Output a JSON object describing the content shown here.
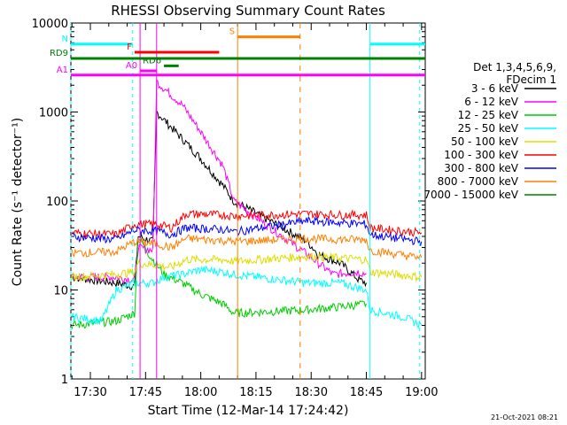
{
  "chart_data": {
    "type": "line",
    "title": "RHESSI Observing Summary Count Rates",
    "xlabel": "Start Time (12-Mar-14 17:24:42)",
    "ylabel": "Count Rate (s⁻¹ detector⁻¹)",
    "y_scale": "log",
    "ylim": [
      1,
      10000
    ],
    "xlim": [
      "17:24:42",
      "19:01:00"
    ],
    "x_ticks": [
      "17:30",
      "17:45",
      "18:00",
      "18:15",
      "18:30",
      "18:45",
      "19:00"
    ],
    "y_ticks": [
      "1",
      "10",
      "100",
      "1000",
      "10000"
    ],
    "legend": {
      "placement": "right",
      "header": [
        "Det 1,3,4,5,6,9,",
        "FDecim 1"
      ]
    },
    "series": [
      {
        "name": "3 - 6 keV",
        "color": "#000000",
        "points": [
          [
            "17:25",
            14
          ],
          [
            "17:37",
            12
          ],
          [
            "17:42",
            11
          ],
          [
            "17:43",
            40
          ],
          [
            "17:47",
            35
          ],
          [
            "17:48",
            1000
          ],
          [
            "17:55",
            500
          ],
          [
            "18:00",
            300
          ],
          [
            "18:06",
            150
          ],
          [
            "18:09",
            100
          ],
          [
            "18:29",
            35
          ],
          [
            "18:32",
            25
          ],
          [
            "18:38",
            20
          ],
          [
            "18:43",
            13
          ],
          [
            "18:45",
            12
          ]
        ]
      },
      {
        "name": "6 - 12 keV",
        "color": "#ff00ff",
        "points": [
          [
            "17:25",
            14
          ],
          [
            "17:37",
            14
          ],
          [
            "17:42",
            13
          ],
          [
            "17:43",
            30
          ],
          [
            "17:47",
            28
          ],
          [
            "17:48",
            2200
          ],
          [
            "17:55",
            1200
          ],
          [
            "18:00",
            600
          ],
          [
            "18:06",
            250
          ],
          [
            "18:09",
            100
          ],
          [
            "18:29",
            25
          ],
          [
            "18:32",
            20
          ],
          [
            "18:36",
            15
          ],
          [
            "18:43",
            16
          ],
          [
            "18:45",
            15
          ]
        ]
      },
      {
        "name": "12 - 25 keV",
        "color": "#00cc00",
        "points": [
          [
            "17:25",
            4
          ],
          [
            "17:37",
            4.5
          ],
          [
            "17:42",
            5.5
          ],
          [
            "17:43",
            40
          ],
          [
            "17:46",
            25
          ],
          [
            "17:50",
            15
          ],
          [
            "17:55",
            12
          ],
          [
            "18:00",
            9
          ],
          [
            "18:06",
            7
          ],
          [
            "18:09",
            5.5
          ],
          [
            "18:29",
            6
          ],
          [
            "18:38",
            6.5
          ],
          [
            "18:45",
            7
          ]
        ]
      },
      {
        "name": "25 - 50 keV",
        "color": "#00ffff",
        "points": [
          [
            "17:25",
            5
          ],
          [
            "17:33",
            4.5
          ],
          [
            "17:37",
            10
          ],
          [
            "17:42",
            12
          ],
          [
            "17:47",
            12
          ],
          [
            "17:50",
            14
          ],
          [
            "17:55",
            15
          ],
          [
            "18:00",
            17
          ],
          [
            "18:06",
            16
          ],
          [
            "18:09",
            15
          ],
          [
            "18:29",
            12
          ],
          [
            "18:38",
            12
          ],
          [
            "18:45",
            10
          ],
          [
            "18:46",
            6
          ],
          [
            "18:55",
            5
          ],
          [
            "19:00",
            4
          ]
        ]
      },
      {
        "name": "50 - 100 keV",
        "color": "#dddd00",
        "points": [
          [
            "17:25",
            14
          ],
          [
            "17:37",
            15
          ],
          [
            "17:42",
            16
          ],
          [
            "17:43",
            20
          ],
          [
            "17:48",
            19
          ],
          [
            "17:52",
            18
          ],
          [
            "17:56",
            22
          ],
          [
            "18:06",
            22
          ],
          [
            "18:09",
            21
          ],
          [
            "18:29",
            24
          ],
          [
            "18:38",
            23
          ],
          [
            "18:45",
            22
          ],
          [
            "18:46",
            16
          ],
          [
            "19:00",
            14
          ]
        ]
      },
      {
        "name": "100 - 300 keV",
        "color": "#ff0000",
        "points": [
          [
            "17:25",
            44
          ],
          [
            "17:37",
            42
          ],
          [
            "17:42",
            55
          ],
          [
            "17:48",
            55
          ],
          [
            "17:52",
            50
          ],
          [
            "17:56",
            72
          ],
          [
            "18:06",
            70
          ],
          [
            "18:09",
            68
          ],
          [
            "18:29",
            72
          ],
          [
            "18:38",
            70
          ],
          [
            "18:45",
            70
          ],
          [
            "18:46",
            50
          ],
          [
            "19:00",
            44
          ]
        ]
      },
      {
        "name": "300 - 800 keV",
        "color": "#0000ff",
        "points": [
          [
            "17:25",
            40
          ],
          [
            "17:37",
            37
          ],
          [
            "17:42",
            47
          ],
          [
            "17:48",
            46
          ],
          [
            "17:52",
            42
          ],
          [
            "17:56",
            50
          ],
          [
            "18:06",
            48
          ],
          [
            "18:09",
            45
          ],
          [
            "18:29",
            60
          ],
          [
            "18:38",
            57
          ],
          [
            "18:45",
            55
          ],
          [
            "18:46",
            42
          ],
          [
            "19:00",
            35
          ]
        ]
      },
      {
        "name": "800 - 7000 keV",
        "color": "#ff8000",
        "points": [
          [
            "17:25",
            26
          ],
          [
            "17:37",
            27
          ],
          [
            "17:42",
            35
          ],
          [
            "17:48",
            33
          ],
          [
            "17:52",
            30
          ],
          [
            "17:56",
            38
          ],
          [
            "18:06",
            36
          ],
          [
            "18:09",
            35
          ],
          [
            "18:29",
            38
          ],
          [
            "18:38",
            37
          ],
          [
            "18:45",
            37
          ],
          [
            "18:46",
            28
          ],
          [
            "19:00",
            23
          ]
        ]
      },
      {
        "name": "7000 - 15000 keV",
        "color": "#008000",
        "points": []
      }
    ],
    "flags": [
      {
        "label": "N",
        "color": "#00ffff",
        "segments": [
          [
            "17:24:42",
            "17:41:30"
          ],
          [
            "18:46:00",
            "19:01:00"
          ]
        ],
        "level": 5800
      },
      {
        "label": "F",
        "color": "#ff0000",
        "segments": [
          [
            "17:42:00",
            "18:05:00"
          ]
        ],
        "level": 4700
      },
      {
        "label": "RD9",
        "color": "#008000",
        "segments": [
          [
            "17:24:42",
            "19:01:00"
          ]
        ],
        "level": 4000
      },
      {
        "label": "RD6",
        "color": "#008000",
        "segments": [
          [
            "17:50:00",
            "17:54:00"
          ]
        ],
        "level": 3300
      },
      {
        "label": "A0",
        "color": "#ff00ff",
        "segments": [
          [
            "17:43:30",
            "17:48:00"
          ]
        ],
        "level": 2900
      },
      {
        "label": "A1",
        "color": "#ff00ff",
        "segments": [
          [
            "17:24:42",
            "19:01:00"
          ]
        ],
        "level": 2600
      },
      {
        "label": "S",
        "color": "#ff8000",
        "segments": [
          [
            "18:10:00",
            "18:27:00"
          ]
        ],
        "level": 7000
      }
    ]
  },
  "footer": {
    "date_stamp": "21-Oct-2021 08:21"
  }
}
